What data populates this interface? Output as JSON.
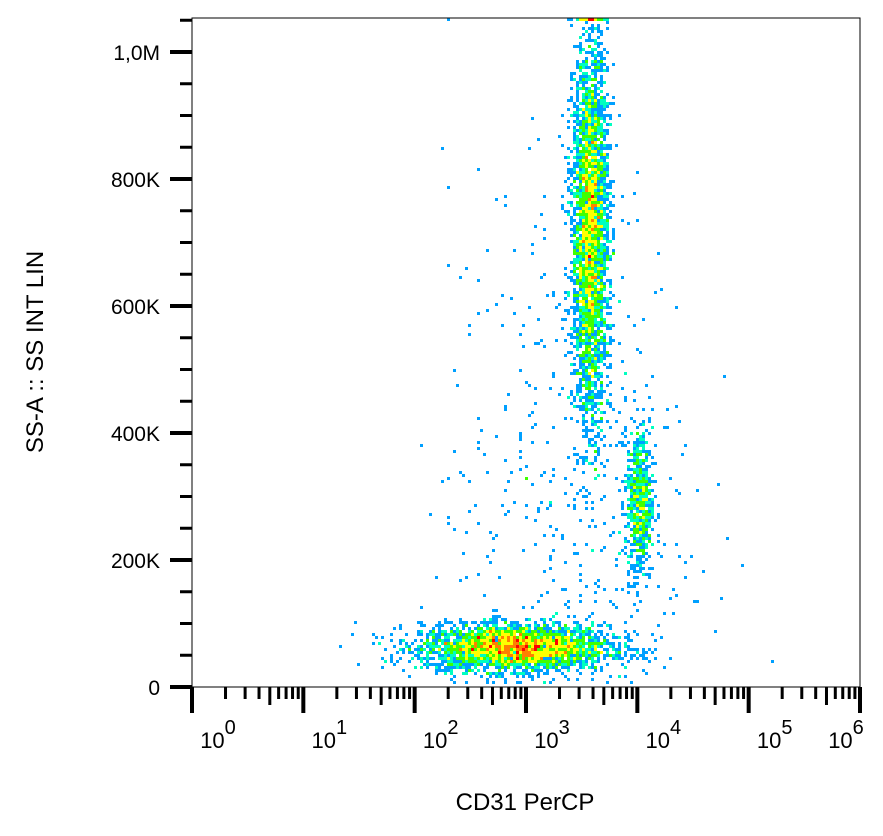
{
  "chart_data": {
    "type": "scatter",
    "subtype": "density-dot-plot",
    "xlabel": "CD31 PerCP",
    "ylabel": "SS-A :: SS INT LIN",
    "x_scale": "log",
    "xlim": [
      1,
      1000000
    ],
    "ylim": [
      0,
      1050000
    ],
    "x_ticks": [
      {
        "base": "10",
        "exp": "0",
        "value": 1
      },
      {
        "base": "10",
        "exp": "1",
        "value": 10
      },
      {
        "base": "10",
        "exp": "2",
        "value": 100
      },
      {
        "base": "10",
        "exp": "3",
        "value": 1000
      },
      {
        "base": "10",
        "exp": "4",
        "value": 10000
      },
      {
        "base": "10",
        "exp": "5",
        "value": 100000
      },
      {
        "base": "10",
        "exp": "6",
        "value": 1000000
      }
    ],
    "y_ticks": [
      {
        "label": "0",
        "value": 0
      },
      {
        "label": "200K",
        "value": 200000
      },
      {
        "label": "400K",
        "value": 400000
      },
      {
        "label": "600K",
        "value": 600000
      },
      {
        "label": "800K",
        "value": 800000
      },
      {
        "label": "1,0M",
        "value": 1000000
      }
    ],
    "grid": false,
    "colormap": [
      "#0000ff",
      "#00a0ff",
      "#00ffc0",
      "#40ff00",
      "#ffff00",
      "#ff8000",
      "#ff0000"
    ],
    "populations": [
      {
        "log10_x_center": 2.9,
        "log10_x_sd": 0.42,
        "y_center": 62000,
        "y_sd": 18000,
        "events": 3200
      },
      {
        "log10_x_center": 3.58,
        "log10_x_sd": 0.08,
        "y_center": 720000,
        "y_sd": 150000,
        "events": 3400
      },
      {
        "log10_x_center": 4.02,
        "log10_x_sd": 0.06,
        "y_center": 290000,
        "y_sd": 60000,
        "events": 650
      },
      {
        "log10_x_center": 3.4,
        "log10_x_sd": 0.55,
        "y_center": 300000,
        "y_sd": 260000,
        "events": 500
      }
    ]
  }
}
